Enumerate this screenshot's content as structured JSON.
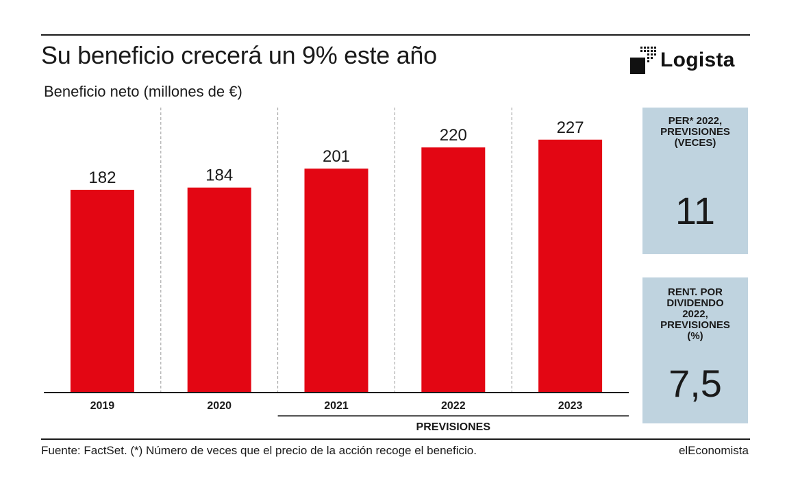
{
  "header": {
    "title": "Su beneficio crecerá un 9% este año",
    "subtitle": "Beneficio neto (millones de €)",
    "logo_text": "Logista"
  },
  "chart_data": {
    "type": "bar",
    "title": "Su beneficio crecerá un 9% este año",
    "ylabel": "Beneficio neto (millones de €)",
    "categories": [
      "2019",
      "2020",
      "2021",
      "2022",
      "2023"
    ],
    "values": [
      182,
      184,
      201,
      220,
      227
    ],
    "data_labels": [
      "182",
      "184",
      "201",
      "220",
      "227"
    ],
    "ylim": [
      0,
      240
    ],
    "bar_color": "#e30613",
    "forecast_group_label": "PREVISIONES",
    "forecast_categories": [
      "2021",
      "2022",
      "2023"
    ],
    "grid": false
  },
  "panels": [
    {
      "label": "PER* 2022,\nPREVISIONES\n(VECES)",
      "value": "11"
    },
    {
      "label": "RENT. POR\nDIVIDENDO\n2022,\nPREVISIONES\n(%)",
      "value": "7,5"
    }
  ],
  "colors": {
    "bar": "#e30613",
    "panel_bg": "#bfd3df",
    "text": "#1a1a1a"
  },
  "footer": {
    "source": "Fuente: FactSet. (*) Número de veces que el precio de la acción recoge el beneficio.",
    "brand": "elEconomista"
  }
}
